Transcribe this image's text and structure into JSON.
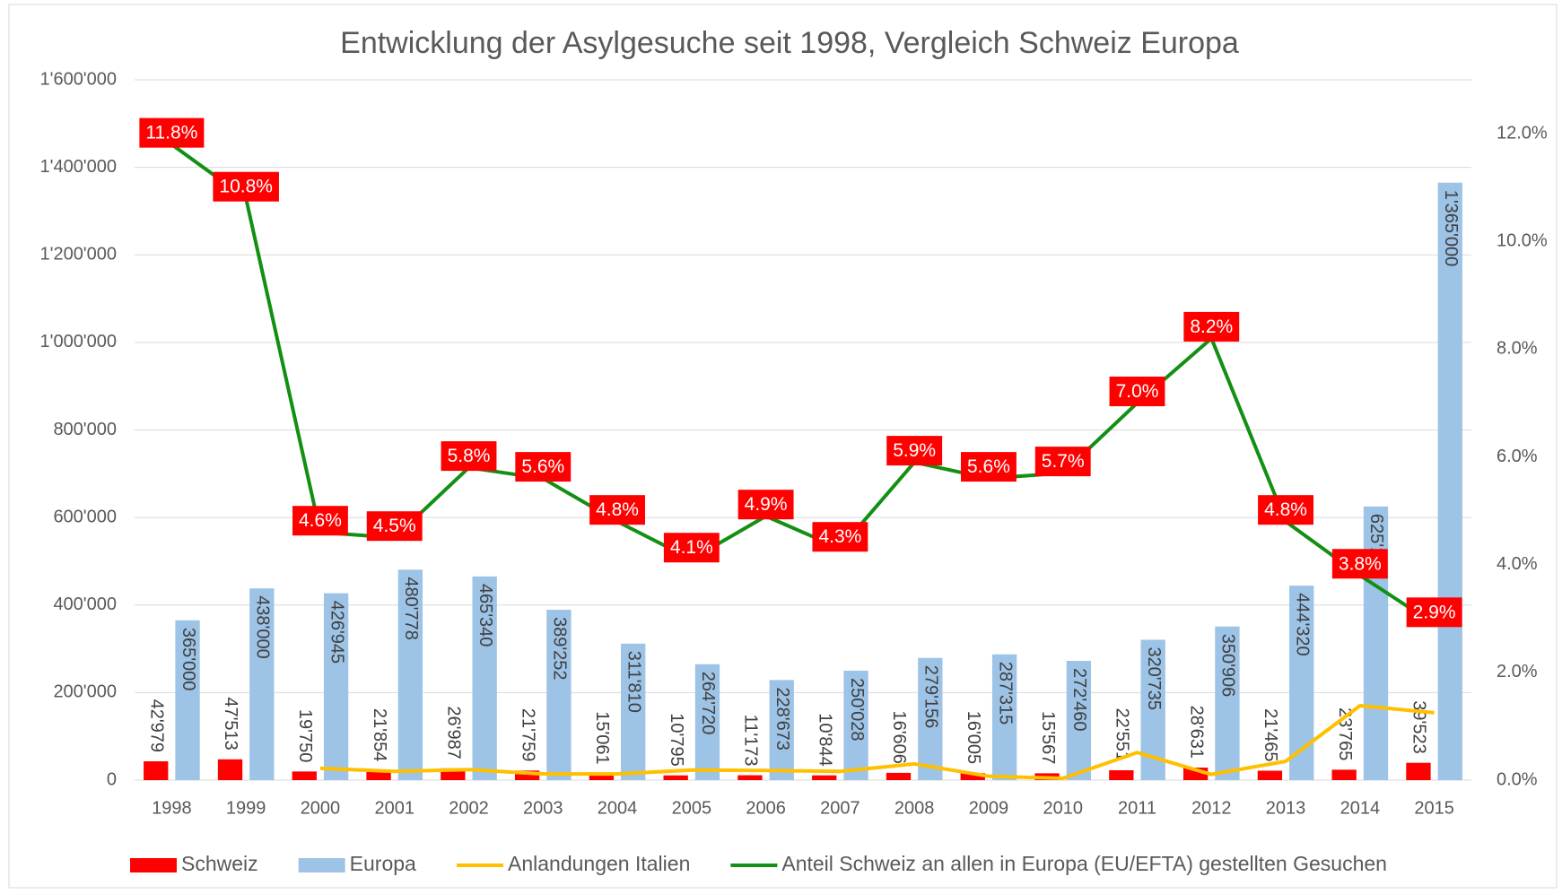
{
  "chart_data": {
    "type": "bar",
    "title": "Entwicklung der Asylgesuche seit 1998, Vergleich Schweiz Europa",
    "categories": [
      "1998",
      "1999",
      "2000",
      "2001",
      "2002",
      "2003",
      "2004",
      "2005",
      "2006",
      "2007",
      "2008",
      "2009",
      "2010",
      "2011",
      "2012",
      "2013",
      "2014",
      "2015"
    ],
    "series": [
      {
        "name": "Schweiz",
        "type": "bar",
        "color": "#ff0000",
        "values": [
          42979,
          47513,
          19750,
          21854,
          26987,
          21759,
          15061,
          10795,
          11173,
          10844,
          16606,
          16005,
          15567,
          22551,
          28631,
          21465,
          23765,
          39523
        ],
        "value_labels": [
          "42'979",
          "47'513",
          "19'750",
          "21'854",
          "26'987",
          "21'759",
          "15'061",
          "10'795",
          "11'173",
          "10'844",
          "16'606",
          "16'005",
          "15'567",
          "22'551",
          "28'631",
          "21'465",
          "23'765",
          "39'523"
        ]
      },
      {
        "name": "Europa",
        "type": "bar",
        "color": "#9dc3e6",
        "values": [
          365000,
          438000,
          426945,
          480778,
          465340,
          389252,
          311810,
          264720,
          228673,
          250028,
          279156,
          287315,
          272460,
          320735,
          350906,
          444320,
          625126,
          1365000
        ],
        "value_labels": [
          "365'000",
          "438'000",
          "426'945",
          "480'778",
          "465'340",
          "389'252",
          "311'810",
          "264'720",
          "228'673",
          "250'028",
          "279'156",
          "287'315",
          "272'460",
          "320'735",
          "350'906",
          "444'320",
          "625'126",
          "1'365'000"
        ]
      },
      {
        "name": "Anlandungen Italien",
        "type": "line",
        "color": "#ffc000",
        "values": [
          null,
          null,
          27000,
          20000,
          24000,
          14000,
          14000,
          23000,
          22000,
          20000,
          37000,
          9000,
          4000,
          63000,
          13000,
          43000,
          170000,
          154000
        ]
      },
      {
        "name": "Anteil Schweiz an allen in Europa (EU/EFTA) gestellten Gesuchen",
        "type": "line",
        "axis": "y2",
        "color": "#138f13",
        "values": [
          11.8,
          10.8,
          4.6,
          4.5,
          5.8,
          5.6,
          4.8,
          4.1,
          4.9,
          4.3,
          5.9,
          5.6,
          5.7,
          7.0,
          8.2,
          4.8,
          3.8,
          2.9
        ],
        "value_labels": [
          "11.8%",
          "10.8%",
          "4.6%",
          "4.5%",
          "5.8%",
          "5.6%",
          "4.8%",
          "4.1%",
          "4.9%",
          "4.3%",
          "5.9%",
          "5.6%",
          "5.7%",
          "7.0%",
          "8.2%",
          "4.8%",
          "3.8%",
          "2.9%"
        ]
      }
    ],
    "ylim": [
      0,
      1600000
    ],
    "yticks": [
      0,
      {
        "value": 200000,
        "label": "200'000"
      },
      {
        "value": 400000,
        "label": "400'000"
      },
      {
        "value": 600000,
        "label": "600'000"
      },
      {
        "value": 800000,
        "label": "800'000"
      },
      {
        "value": 1000000,
        "label": "1'000'000"
      },
      {
        "value": 1200000,
        "label": "1'200'000"
      },
      {
        "value": 1400000,
        "label": "1'400'000"
      },
      {
        "value": 1600000,
        "label": "1'600'000"
      }
    ],
    "y2lim": [
      0,
      13
    ],
    "y2ticks": [
      {
        "value": 0,
        "label": "0.0%"
      },
      {
        "value": 2,
        "label": "2.0%"
      },
      {
        "value": 4,
        "label": "4.0%"
      },
      {
        "value": 6,
        "label": "6.0%"
      },
      {
        "value": 8,
        "label": "8.0%"
      },
      {
        "value": 10,
        "label": "10.0%"
      },
      {
        "value": 12,
        "label": "12.0%"
      }
    ],
    "grid": true,
    "legend": "bottom"
  }
}
